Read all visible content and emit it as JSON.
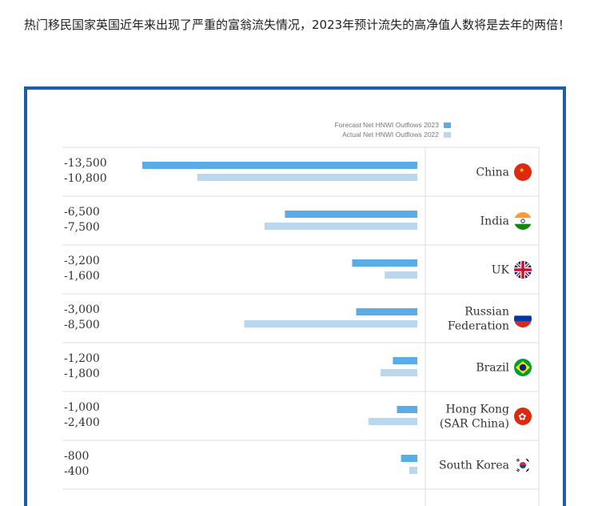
{
  "article": {
    "intro_text": "热门移民国家英国近年来出现了严重的富翁流失情况，2023年预计流失的高净值人数将是去年的两倍！"
  },
  "colors": {
    "forecast": "#5aace6",
    "actual": "#b9d7ee",
    "frame_border": "#1a5fa8"
  },
  "chart_data": {
    "type": "bar",
    "orientation": "horizontal",
    "title": "",
    "xlabel": "",
    "ylabel": "",
    "legend_position": "top-right",
    "categories": [
      "China",
      "India",
      "UK",
      "Russian Federation",
      "Brazil",
      "Hong Kong (SAR China)",
      "South Korea"
    ],
    "category_lines": [
      [
        "China"
      ],
      [
        "India"
      ],
      [
        "UK"
      ],
      [
        "Russian",
        "Federation"
      ],
      [
        "Brazil"
      ],
      [
        "Hong Kong",
        "(SAR China)"
      ],
      [
        "South Korea"
      ]
    ],
    "flags": [
      "china-flag-icon",
      "india-flag-icon",
      "uk-flag-icon",
      "russia-flag-icon",
      "brazil-flag-icon",
      "hong-kong-flag-icon",
      "south-korea-flag-icon"
    ],
    "series": [
      {
        "name": "Forecast Net HNWI Outflows 2023",
        "values": [
          -13500,
          -6500,
          -3200,
          -3000,
          -1200,
          -1000,
          -800
        ],
        "labels": [
          "-13,500",
          "-6,500",
          "-3,200",
          "-3,000",
          "-1,200",
          "-1,000",
          "-800"
        ]
      },
      {
        "name": "Actual Net HNWI Outflows 2022",
        "values": [
          -10800,
          -7500,
          -1600,
          -8500,
          -1800,
          -2400,
          -400
        ],
        "labels": [
          "-10,800",
          "-7,500",
          "-1,600",
          "-8,500",
          "-1,800",
          "-2,400",
          "-400"
        ]
      }
    ],
    "xlim": [
      -13500,
      0
    ]
  }
}
